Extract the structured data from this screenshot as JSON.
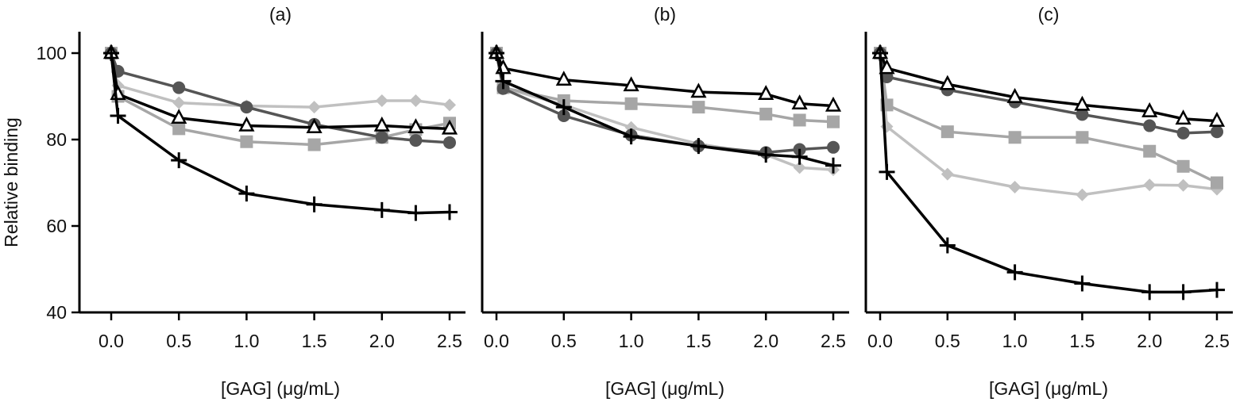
{
  "chart_data": [
    {
      "type": "line",
      "title": "(a)",
      "xlabel": "[GAG] (μg/mL)",
      "ylabel": "Relative binding",
      "xlim": [
        0,
        2.5
      ],
      "ylim": [
        40,
        100
      ],
      "xticks": [
        "0.0",
        "0.5",
        "1.0",
        "1.5",
        "2.0",
        "2.5"
      ],
      "yticks": [
        "100",
        "80",
        "60",
        "40"
      ],
      "x": [
        0,
        0.05,
        0.5,
        1.0,
        1.5,
        2.0,
        2.25,
        2.5
      ],
      "series": [
        {
          "marker": "diamond",
          "color": "#c0c0c0",
          "values": [
            100,
            92.5,
            88.5,
            87.8,
            87.5,
            89,
            89,
            88
          ]
        },
        {
          "marker": "square",
          "color": "#a6a6a6",
          "values": [
            100,
            90,
            82.5,
            79.5,
            78.8,
            80.5,
            82.3,
            83.8
          ]
        },
        {
          "marker": "circle",
          "color": "#555555",
          "values": [
            100,
            95.8,
            92,
            87.5,
            83.5,
            80.5,
            79.8,
            79.3
          ]
        },
        {
          "marker": "triangle-open",
          "color": "#000000",
          "values": [
            100,
            90.5,
            85,
            83.2,
            82.8,
            83.2,
            82.8,
            82.5
          ]
        },
        {
          "marker": "cross",
          "color": "#000000",
          "values": [
            100,
            85.5,
            75.2,
            67.5,
            65,
            63.7,
            63,
            63.2
          ]
        }
      ]
    },
    {
      "type": "line",
      "title": "(b)",
      "xlabel": "[GAG] (μg/mL)",
      "xlim": [
        0,
        2.5
      ],
      "ylim": [
        40,
        100
      ],
      "xticks": [
        "0.0",
        "0.5",
        "1.0",
        "1.5",
        "2.0",
        "2.5"
      ],
      "x": [
        0,
        0.05,
        0.5,
        1.0,
        1.5,
        2.0,
        2.25,
        2.5
      ],
      "series": [
        {
          "marker": "diamond",
          "color": "#c0c0c0",
          "values": [
            100,
            92,
            88,
            82.8,
            79,
            76.5,
            73.5,
            73
          ]
        },
        {
          "marker": "square",
          "color": "#a6a6a6",
          "values": [
            100,
            92,
            89,
            88.3,
            87.5,
            85.9,
            84.5,
            84.1
          ]
        },
        {
          "marker": "circle",
          "color": "#555555",
          "values": [
            100,
            91.8,
            85.5,
            81,
            78.5,
            77,
            77.7,
            78.2
          ]
        },
        {
          "marker": "triangle-open",
          "color": "#000000",
          "values": [
            100,
            96.5,
            93.8,
            92.5,
            91,
            90.5,
            88.3,
            87.8
          ]
        },
        {
          "marker": "cross",
          "color": "#000000",
          "values": [
            100,
            93.5,
            87.5,
            80.7,
            78.5,
            76.5,
            76,
            74
          ]
        }
      ]
    },
    {
      "type": "line",
      "title": "(c)",
      "xlabel": "[GAG] (μg/mL)",
      "xlim": [
        0,
        2.5
      ],
      "ylim": [
        40,
        100
      ],
      "xticks": [
        "0.0",
        "0.5",
        "1.0",
        "1.5",
        "2.0",
        "2.5"
      ],
      "x": [
        0,
        0.05,
        0.5,
        1.0,
        1.5,
        2.0,
        2.25,
        2.5
      ],
      "series": [
        {
          "marker": "diamond",
          "color": "#c0c0c0",
          "values": [
            100,
            83,
            72,
            69,
            67.2,
            69.5,
            69.4,
            68.5
          ]
        },
        {
          "marker": "square",
          "color": "#a6a6a6",
          "values": [
            100,
            88,
            81.8,
            80.5,
            80.5,
            77.3,
            73.8,
            70
          ]
        },
        {
          "marker": "circle",
          "color": "#555555",
          "values": [
            100,
            94.5,
            91.5,
            88.7,
            85.8,
            83.2,
            81.5,
            81.8
          ]
        },
        {
          "marker": "triangle-open",
          "color": "#000000",
          "values": [
            100,
            96.5,
            92.8,
            89.8,
            88,
            86.5,
            84.8,
            84.3
          ]
        },
        {
          "marker": "cross",
          "color": "#000000",
          "values": [
            100,
            72.5,
            55.5,
            49.3,
            46.7,
            44.7,
            44.7,
            45.2
          ]
        }
      ]
    }
  ]
}
